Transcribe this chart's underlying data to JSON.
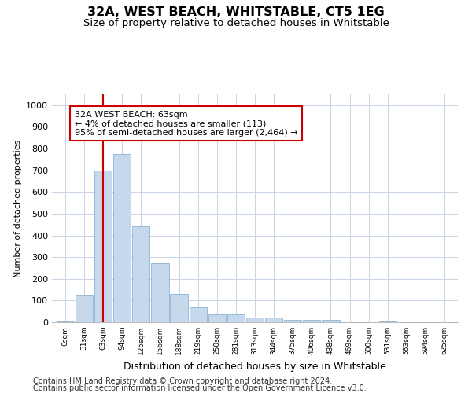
{
  "title": "32A, WEST BEACH, WHITSTABLE, CT5 1EG",
  "subtitle": "Size of property relative to detached houses in Whitstable",
  "xlabel": "Distribution of detached houses by size in Whitstable",
  "ylabel": "Number of detached properties",
  "bin_labels": [
    "0sqm",
    "31sqm",
    "63sqm",
    "94sqm",
    "125sqm",
    "156sqm",
    "188sqm",
    "219sqm",
    "250sqm",
    "281sqm",
    "313sqm",
    "344sqm",
    "375sqm",
    "406sqm",
    "438sqm",
    "469sqm",
    "500sqm",
    "531sqm",
    "563sqm",
    "594sqm",
    "625sqm"
  ],
  "bar_heights": [
    5,
    125,
    700,
    775,
    440,
    270,
    130,
    70,
    37,
    37,
    20,
    20,
    10,
    10,
    10,
    0,
    0,
    5,
    0,
    0,
    0
  ],
  "bar_color": "#c6d9ec",
  "bar_edge_color": "#8ab4d4",
  "vline_x_index": 2,
  "vline_color": "#cc0000",
  "annotation_text": "32A WEST BEACH: 63sqm\n← 4% of detached houses are smaller (113)\n95% of semi-detached houses are larger (2,464) →",
  "annotation_box_color": "white",
  "annotation_box_edge_color": "#cc0000",
  "ylim": [
    0,
    1050
  ],
  "yticks": [
    0,
    100,
    200,
    300,
    400,
    500,
    600,
    700,
    800,
    900,
    1000
  ],
  "footer_line1": "Contains HM Land Registry data © Crown copyright and database right 2024.",
  "footer_line2": "Contains public sector information licensed under the Open Government Licence v3.0.",
  "bg_color": "#ffffff",
  "grid_color": "#c8d4e4",
  "title_fontsize": 11.5,
  "subtitle_fontsize": 9.5,
  "annotation_fontsize": 8,
  "footer_fontsize": 7,
  "ylabel_fontsize": 8,
  "xlabel_fontsize": 9
}
